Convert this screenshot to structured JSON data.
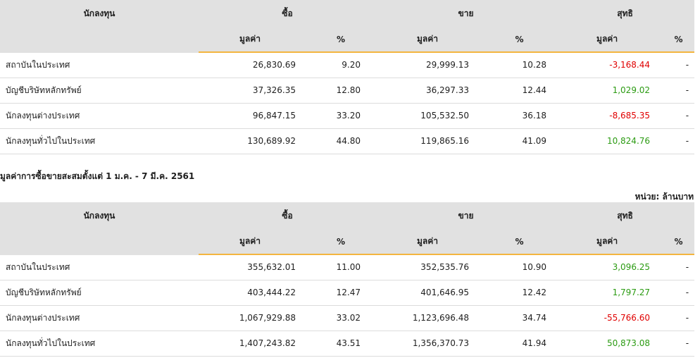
{
  "colors": {
    "header_bg": "#e1e1e1",
    "accent_underline": "#f3b53f",
    "negative": "#e00000",
    "positive": "#2b9b12"
  },
  "tables": [
    {
      "headers": {
        "investor": "นักลงทุน",
        "buy": "ซื้อ",
        "sell": "ขาย",
        "net": "สุทธิ",
        "value": "มูลค่า",
        "pct": "%"
      },
      "rows": [
        {
          "name": "สถาบันในประเทศ",
          "buy_value": "26,830.69",
          "buy_pct": "9.20",
          "sell_value": "29,999.13",
          "sell_pct": "10.28",
          "net_value": "-3,168.44",
          "net_sign": "neg",
          "net_pct": "-"
        },
        {
          "name": "บัญชีบริษัทหลักทรัพย์",
          "buy_value": "37,326.35",
          "buy_pct": "12.80",
          "sell_value": "36,297.33",
          "sell_pct": "12.44",
          "net_value": "1,029.02",
          "net_sign": "pos",
          "net_pct": "-"
        },
        {
          "name": "นักลงทุนต่างประเทศ",
          "buy_value": "96,847.15",
          "buy_pct": "33.20",
          "sell_value": "105,532.50",
          "sell_pct": "36.18",
          "net_value": "-8,685.35",
          "net_sign": "neg",
          "net_pct": "-"
        },
        {
          "name": "นักลงทุนทั่วไปในประเทศ",
          "buy_value": "130,689.92",
          "buy_pct": "44.80",
          "sell_value": "119,865.16",
          "sell_pct": "41.09",
          "net_value": "10,824.76",
          "net_sign": "pos",
          "net_pct": "-"
        }
      ]
    },
    {
      "headers": {
        "investor": "นักลงทุน",
        "buy": "ซื้อ",
        "sell": "ขาย",
        "net": "สุทธิ",
        "value": "มูลค่า",
        "pct": "%"
      },
      "rows": [
        {
          "name": "สถาบันในประเทศ",
          "buy_value": "355,632.01",
          "buy_pct": "11.00",
          "sell_value": "352,535.76",
          "sell_pct": "10.90",
          "net_value": "3,096.25",
          "net_sign": "pos",
          "net_pct": "-"
        },
        {
          "name": "บัญชีบริษัทหลักทรัพย์",
          "buy_value": "403,444.22",
          "buy_pct": "12.47",
          "sell_value": "401,646.95",
          "sell_pct": "12.42",
          "net_value": "1,797.27",
          "net_sign": "pos",
          "net_pct": "-"
        },
        {
          "name": "นักลงทุนต่างประเทศ",
          "buy_value": "1,067,929.88",
          "buy_pct": "33.02",
          "sell_value": "1,123,696.48",
          "sell_pct": "34.74",
          "net_value": "-55,766.60",
          "net_sign": "neg",
          "net_pct": "-"
        },
        {
          "name": "นักลงทุนทั่วไปในประเทศ",
          "buy_value": "1,407,243.82",
          "buy_pct": "43.51",
          "sell_value": "1,356,370.73",
          "sell_pct": "41.94",
          "net_value": "50,873.08",
          "net_sign": "pos",
          "net_pct": "-"
        }
      ]
    }
  ],
  "section2": {
    "title": "มูลค่าการซื้อขายสะสมตั้งแต่ 1 ม.ค. - 7 มี.ค. 2561",
    "unit": "หน่วย: ล้านบาท"
  }
}
